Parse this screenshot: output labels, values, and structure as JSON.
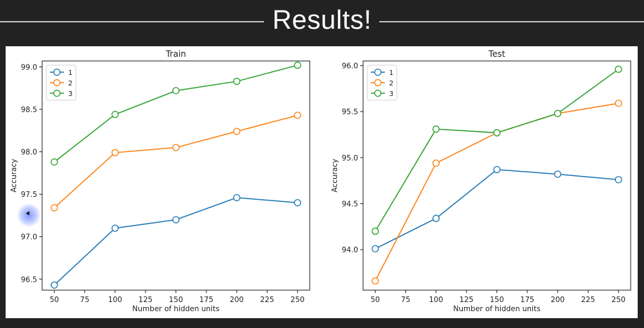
{
  "slide": {
    "title": "Results!"
  },
  "colors": {
    "series": [
      "#1f77b4",
      "#ff7f0e",
      "#2ca02c"
    ]
  },
  "chart_data": [
    {
      "type": "line",
      "title": "Train",
      "xlabel": "Number of hidden units",
      "ylabel": "Accuracy",
      "x": [
        50,
        100,
        150,
        200,
        250
      ],
      "xlim": [
        40,
        260
      ],
      "ylim": [
        96.37,
        99.07
      ],
      "xticks": [
        "50",
        "75",
        "100",
        "125",
        "150",
        "175",
        "200",
        "225",
        "250"
      ],
      "yticks": [
        "96.5",
        "97.0",
        "97.5",
        "98.0",
        "98.5",
        "99.0"
      ],
      "legend_position": "top-left",
      "grid": false,
      "series": [
        {
          "name": "1",
          "values": [
            96.43,
            97.1,
            97.2,
            97.46,
            97.4
          ]
        },
        {
          "name": "2",
          "values": [
            97.34,
            97.99,
            98.05,
            98.24,
            98.43
          ]
        },
        {
          "name": "3",
          "values": [
            97.88,
            98.44,
            98.72,
            98.83,
            99.02
          ]
        }
      ]
    },
    {
      "type": "line",
      "title": "Test",
      "xlabel": "Number of hidden units",
      "ylabel": "Accuracy",
      "x": [
        50,
        100,
        150,
        200,
        250
      ],
      "xlim": [
        40,
        260
      ],
      "ylim": [
        93.56,
        96.05
      ],
      "xticks": [
        "50",
        "75",
        "100",
        "125",
        "150",
        "175",
        "200",
        "225",
        "250"
      ],
      "yticks": [
        "94.0",
        "94.5",
        "95.0",
        "95.5",
        "96.0"
      ],
      "legend_position": "top-left",
      "grid": false,
      "series": [
        {
          "name": "1",
          "values": [
            94.01,
            94.34,
            94.87,
            94.82,
            94.76
          ]
        },
        {
          "name": "2",
          "values": [
            93.66,
            94.94,
            95.27,
            95.48,
            95.59
          ]
        },
        {
          "name": "3",
          "values": [
            94.2,
            95.31,
            95.27,
            95.48,
            95.96
          ]
        }
      ]
    }
  ]
}
